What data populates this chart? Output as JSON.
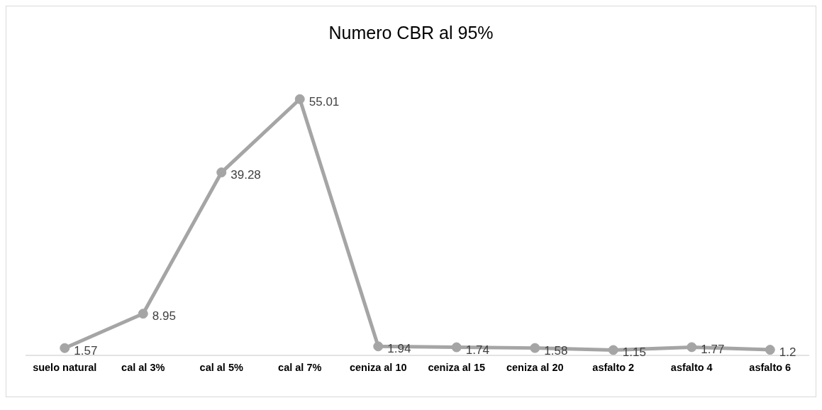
{
  "chart_data": {
    "type": "line",
    "title": "Numero CBR al 95%",
    "categories": [
      "suelo natural",
      "cal al 3%",
      "cal al 5%",
      "cal al 7%",
      "ceniza al 10",
      "ceniza al 15",
      "ceniza al 20",
      "asfalto 2",
      "asfalto 4",
      "asfalto 6"
    ],
    "values": [
      1.57,
      8.95,
      39.28,
      55.01,
      1.94,
      1.74,
      1.58,
      1.15,
      1.77,
      1.2
    ],
    "color": "#a5a5a5",
    "marker": "circle",
    "line_style": "solid",
    "data_labels": true,
    "tick_labels": "x"
  }
}
